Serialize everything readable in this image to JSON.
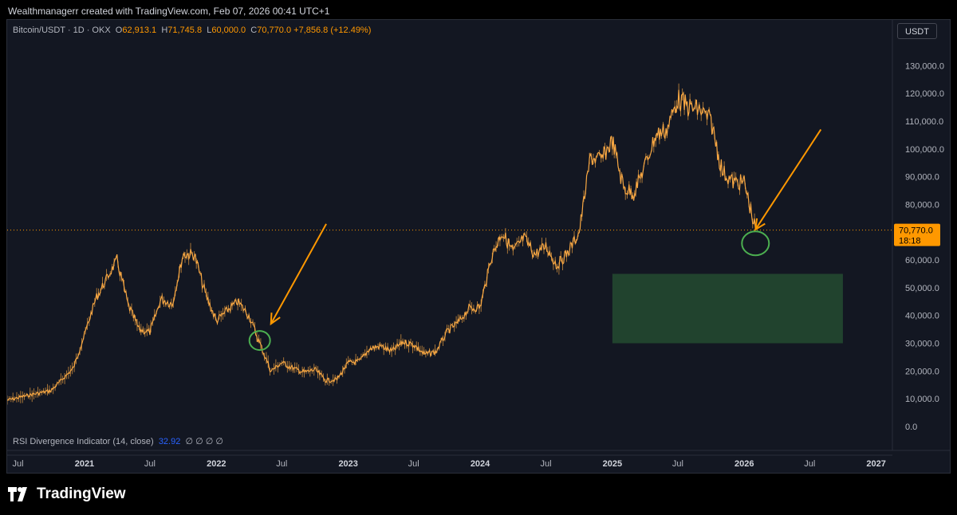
{
  "header": {
    "credit": "Wealthmanagerr created with TradingView.com, Feb 07, 2026 00:41 UTC+1"
  },
  "legend": {
    "symbol": "Bitcoin/USDT · 1D · OKX",
    "o_label": "O",
    "o_value": "62,913.1",
    "h_label": "H",
    "h_value": "71,745.8",
    "l_label": "L",
    "l_value": "60,000.0",
    "c_label": "C",
    "c_value": "70,770.0",
    "change": "+7,856.8 (+12.49%)"
  },
  "currency_button": "USDT",
  "price_tag": {
    "price": "70,770.0",
    "countdown": "18:18"
  },
  "rsi": {
    "label": "RSI Divergence Indicator (14, close)",
    "value": "32.92",
    "flags": "∅ ∅ ∅ ∅"
  },
  "brand": "TradingView",
  "colors": {
    "candle": "#f7a743",
    "background": "#131722",
    "accent": "#ff9800",
    "circle": "#4caf50",
    "zone": "#244830",
    "rsi_value": "#2962ff"
  },
  "chart_data": {
    "type": "line",
    "series": [
      {
        "x": [
          "2020-06",
          "2020-08",
          "2020-10",
          "2020-12",
          "2021-01",
          "2021-02",
          "2021-04",
          "2021-05",
          "2021-06",
          "2021-07",
          "2021-08",
          "2021-09",
          "2021-10",
          "2021-11",
          "2021-12",
          "2022-01",
          "2022-02",
          "2022-03",
          "2022-04",
          "2022-05",
          "2022-06",
          "2022-07",
          "2022-08",
          "2022-09",
          "2022-10",
          "2022-11",
          "2022-12",
          "2023-01",
          "2023-02",
          "2023-03",
          "2023-04",
          "2023-05",
          "2023-06",
          "2023-07",
          "2023-08",
          "2023-09",
          "2023-10",
          "2023-11",
          "2023-12",
          "2024-01",
          "2024-02",
          "2024-03",
          "2024-04",
          "2024-05",
          "2024-06",
          "2024-07",
          "2024-08",
          "2024-09",
          "2024-10",
          "2024-11",
          "2024-12",
          "2025-01",
          "2025-02",
          "2025-03",
          "2025-04",
          "2025-05",
          "2025-06",
          "2025-07",
          "2025-08",
          "2025-09",
          "2025-10",
          "2025-11",
          "2025-12",
          "2026-01",
          "2026-02"
        ],
        "values": [
          9500,
          11300,
          13000,
          21000,
          33000,
          46000,
          60000,
          44000,
          35000,
          34000,
          46000,
          44000,
          62000,
          62000,
          48000,
          38000,
          42000,
          45000,
          40000,
          30000,
          20000,
          23000,
          21000,
          19500,
          20500,
          16500,
          17000,
          23000,
          23500,
          28000,
          29000,
          27000,
          30500,
          29500,
          26000,
          27000,
          34000,
          37500,
          42500,
          43000,
          61000,
          70000,
          63000,
          68000,
          62000,
          65000,
          58000,
          63000,
          70000,
          97000,
          96000,
          103000,
          86000,
          84000,
          94000,
          105000,
          107000,
          118000,
          115000,
          114000,
          110000,
          92000,
          88000,
          88000,
          70770
        ]
      }
    ],
    "x_ticks": [
      "Jul",
      "2021",
      "Jul",
      "2022",
      "Jul",
      "2023",
      "Jul",
      "2024",
      "Jul",
      "2025",
      "Jul",
      "2026",
      "Jul",
      "2027"
    ],
    "y_ticks": [
      "130,000.0",
      "120,000.0",
      "110,000.0",
      "100,000.0",
      "90,000.0",
      "80,000.0",
      "70,000.0",
      "60,000.0",
      "50,000.0",
      "40,000.0",
      "30,000.0",
      "20,000.0",
      "10,000.0",
      "0.0"
    ],
    "ylim": [
      0,
      135000
    ],
    "last_price": 70770,
    "zone": {
      "x_start": "2025-01",
      "x_end": "2026-10",
      "y_low": 30000,
      "y_high": 55000
    },
    "circles": [
      {
        "x": "2022-05",
        "y": 31000
      },
      {
        "x": "2026-02",
        "y": 66000
      }
    ],
    "arrows": [
      {
        "from_x": "2022-11",
        "from_y": 73000,
        "to_x": "2022-06",
        "to_y": 37000
      },
      {
        "from_x": "2026-08",
        "from_y": 107000,
        "to_x": "2026-02",
        "to_y": 71000
      }
    ]
  }
}
